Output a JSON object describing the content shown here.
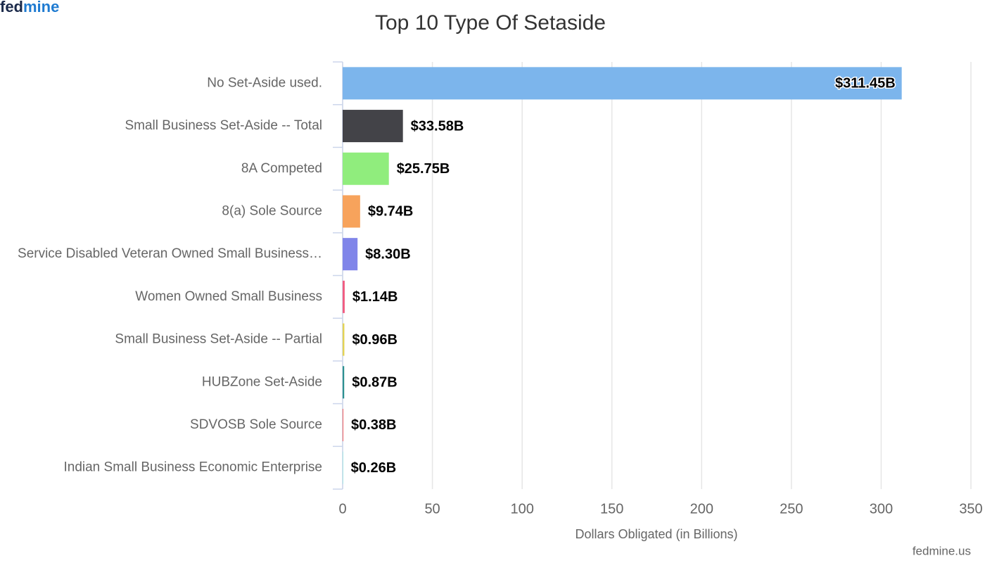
{
  "brand": [
    "fed",
    "mine"
  ],
  "credit": "fedmine.us",
  "chart_data": {
    "type": "bar",
    "orientation": "horizontal",
    "title": "Top 10 Type Of Setaside",
    "x_label": "Dollars Obligated (in Billions)",
    "categories": [
      "No Set-Aside used.",
      "Small Business Set-Aside -- Total",
      "8A Competed",
      "8(a) Sole Source",
      "Service Disabled Veteran Owned Small Business…",
      "Women Owned Small Business",
      "Small Business Set-Aside -- Partial",
      "HUBZone Set-Aside",
      "SDVOSB Sole Source",
      "Indian Small Business Economic Enterprise"
    ],
    "values": [
      311.45,
      33.58,
      25.75,
      9.74,
      8.3,
      1.14,
      0.96,
      0.87,
      0.38,
      0.26
    ],
    "value_labels": [
      "$311.45B",
      "$33.58B",
      "$25.75B",
      "$9.74B",
      "$8.30B",
      "$1.14B",
      "$0.96B",
      "$0.87B",
      "$0.38B",
      "$0.26B"
    ],
    "colors": [
      "#7cb5ec",
      "#434348",
      "#90ed7d",
      "#f7a35c",
      "#8085e9",
      "#f15c80",
      "#e4d354",
      "#2b908f",
      "#f45b5b",
      "#91e8e1"
    ],
    "xlim": [
      0,
      350
    ],
    "xticks": [
      0,
      50,
      100,
      150,
      200,
      250,
      300,
      350
    ],
    "grid": true
  }
}
